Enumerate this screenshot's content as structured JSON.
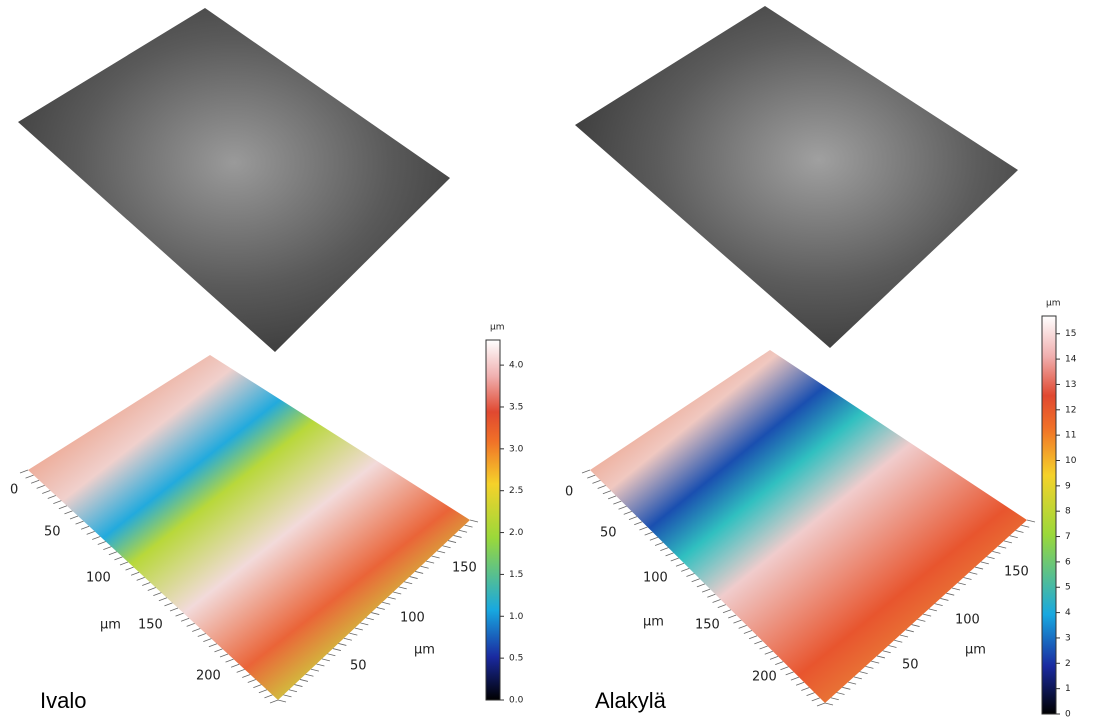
{
  "panels": [
    {
      "label": "Ivalo",
      "colorbar": {
        "unit": "µm",
        "range": [
          0,
          4.3
        ],
        "ticks": [
          {
            "value": 0,
            "label": "0.0"
          },
          {
            "value": 0.5,
            "label": "0.5"
          },
          {
            "value": 1,
            "label": "1.0"
          },
          {
            "value": 1.5,
            "label": "1.5"
          },
          {
            "value": 2,
            "label": "2.0"
          },
          {
            "value": 2.5,
            "label": "2.5"
          },
          {
            "value": 3,
            "label": "3.0"
          },
          {
            "value": 3.5,
            "label": "3.5"
          },
          {
            "value": 4,
            "label": "4.0"
          }
        ]
      },
      "axis_left": {
        "ticks": [
          0,
          50,
          100,
          150,
          200
        ],
        "unit": "µm"
      },
      "axis_right": {
        "ticks": [
          50,
          100,
          150
        ],
        "unit": "µm"
      }
    },
    {
      "label": "Alakylä",
      "colorbar": {
        "unit": "µm",
        "range": [
          0,
          15.7
        ],
        "ticks": [
          0,
          1,
          2,
          3,
          4,
          5,
          6,
          7,
          8,
          9,
          10,
          11,
          12,
          13,
          14,
          15
        ]
      },
      "axis_left": {
        "ticks": [
          0,
          50,
          100,
          150,
          200
        ],
        "unit": "µm"
      },
      "axis_right": {
        "ticks": [
          50,
          100,
          150
        ],
        "unit": "µm"
      }
    }
  ]
}
